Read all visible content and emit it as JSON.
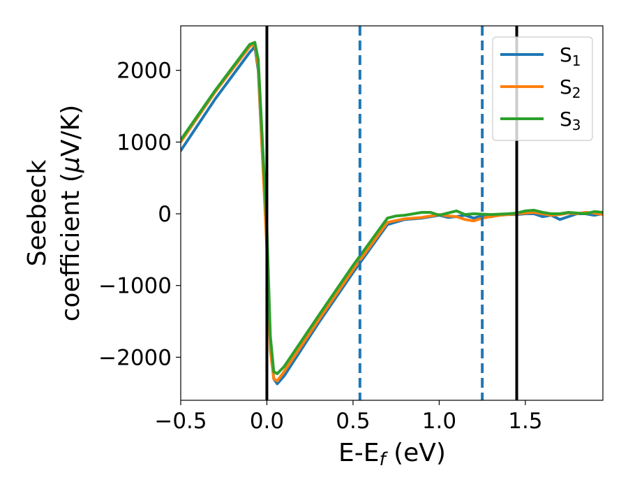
{
  "chart_data": {
    "type": "line",
    "xlabel": "E-E",
    "xlabel_sub": "f",
    "xlabel_unit": " (eV)",
    "ylabel_line1": "Seebeck",
    "ylabel_line2_prefix": "coefficient  (",
    "ylabel_mu": "μ",
    "ylabel_line2_suffix": "V/K)",
    "xlim": [
      -0.5,
      1.95
    ],
    "ylim": [
      -2600,
      2620
    ],
    "xticks": [
      -0.5,
      0.0,
      0.5,
      1.0,
      1.5
    ],
    "xtick_labels": [
      "−0.5",
      "0.0",
      "0.5",
      "1.0",
      "1.5"
    ],
    "yticks": [
      -2000,
      -1000,
      0,
      1000,
      2000
    ],
    "ytick_labels": [
      "−2000",
      "−1000",
      "0",
      "1000",
      "2000"
    ],
    "grid": false,
    "legend_position": "top-right",
    "vlines": [
      {
        "x": 0.0,
        "style": "solid",
        "color": "#000000"
      },
      {
        "x": 0.54,
        "style": "dashed",
        "color": "#1f77b4"
      },
      {
        "x": 1.25,
        "style": "dashed",
        "color": "#1f77b4"
      },
      {
        "x": 1.45,
        "style": "solid",
        "color": "#000000"
      }
    ],
    "series": [
      {
        "name": "S",
        "sub": "1",
        "color": "#1f77b4",
        "x": [
          -0.5,
          -0.3,
          -0.1,
          -0.07,
          -0.05,
          -0.03,
          0.0,
          0.02,
          0.04,
          0.06,
          0.1,
          0.3,
          0.5,
          0.7,
          0.8,
          0.9,
          1.0,
          1.05,
          1.1,
          1.15,
          1.2,
          1.25,
          1.3,
          1.35,
          1.4,
          1.45,
          1.5,
          1.55,
          1.6,
          1.65,
          1.7,
          1.75,
          1.8,
          1.85,
          1.9,
          1.95
        ],
        "y": [
          880,
          1600,
          2250,
          2330,
          2000,
          1000,
          -400,
          -1800,
          -2300,
          -2370,
          -2260,
          -1520,
          -820,
          -150,
          -80,
          -60,
          -20,
          -50,
          -40,
          -20,
          -60,
          -30,
          -40,
          -20,
          -10,
          -10,
          0,
          0,
          -40,
          -20,
          -80,
          -40,
          0,
          0,
          -20,
          0
        ]
      },
      {
        "name": "S",
        "sub": "2",
        "color": "#ff7f0e",
        "x": [
          -0.5,
          -0.3,
          -0.1,
          -0.07,
          -0.05,
          -0.03,
          0.0,
          0.02,
          0.04,
          0.06,
          0.1,
          0.3,
          0.5,
          0.7,
          0.8,
          0.9,
          1.0,
          1.05,
          1.1,
          1.15,
          1.2,
          1.25,
          1.3,
          1.35,
          1.4,
          1.45,
          1.5,
          1.55,
          1.6,
          1.65,
          1.7,
          1.75,
          1.8,
          1.85,
          1.9,
          1.95
        ],
        "y": [
          1000,
          1700,
          2330,
          2370,
          2050,
          1000,
          -500,
          -1900,
          -2300,
          -2330,
          -2200,
          -1480,
          -780,
          -120,
          -70,
          -50,
          -10,
          -30,
          -40,
          -80,
          -100,
          -60,
          -40,
          -20,
          -10,
          0,
          10,
          20,
          0,
          -20,
          -10,
          10,
          0,
          20,
          10,
          -10
        ]
      },
      {
        "name": "S",
        "sub": "3",
        "color": "#2ca02c",
        "x": [
          -0.5,
          -0.3,
          -0.1,
          -0.07,
          -0.05,
          -0.03,
          0.0,
          0.02,
          0.04,
          0.06,
          0.1,
          0.3,
          0.5,
          0.7,
          0.75,
          0.8,
          0.9,
          0.95,
          1.0,
          1.05,
          1.1,
          1.15,
          1.2,
          1.3,
          1.4,
          1.45,
          1.5,
          1.55,
          1.6,
          1.65,
          1.7,
          1.75,
          1.8,
          1.85,
          1.9,
          1.95
        ],
        "y": [
          1030,
          1720,
          2360,
          2390,
          2150,
          1200,
          -200,
          -1700,
          -2200,
          -2230,
          -2130,
          -1420,
          -720,
          -60,
          -30,
          -20,
          20,
          20,
          -20,
          10,
          40,
          -10,
          0,
          -10,
          0,
          10,
          40,
          50,
          20,
          0,
          0,
          20,
          10,
          0,
          30,
          20
        ]
      }
    ]
  }
}
